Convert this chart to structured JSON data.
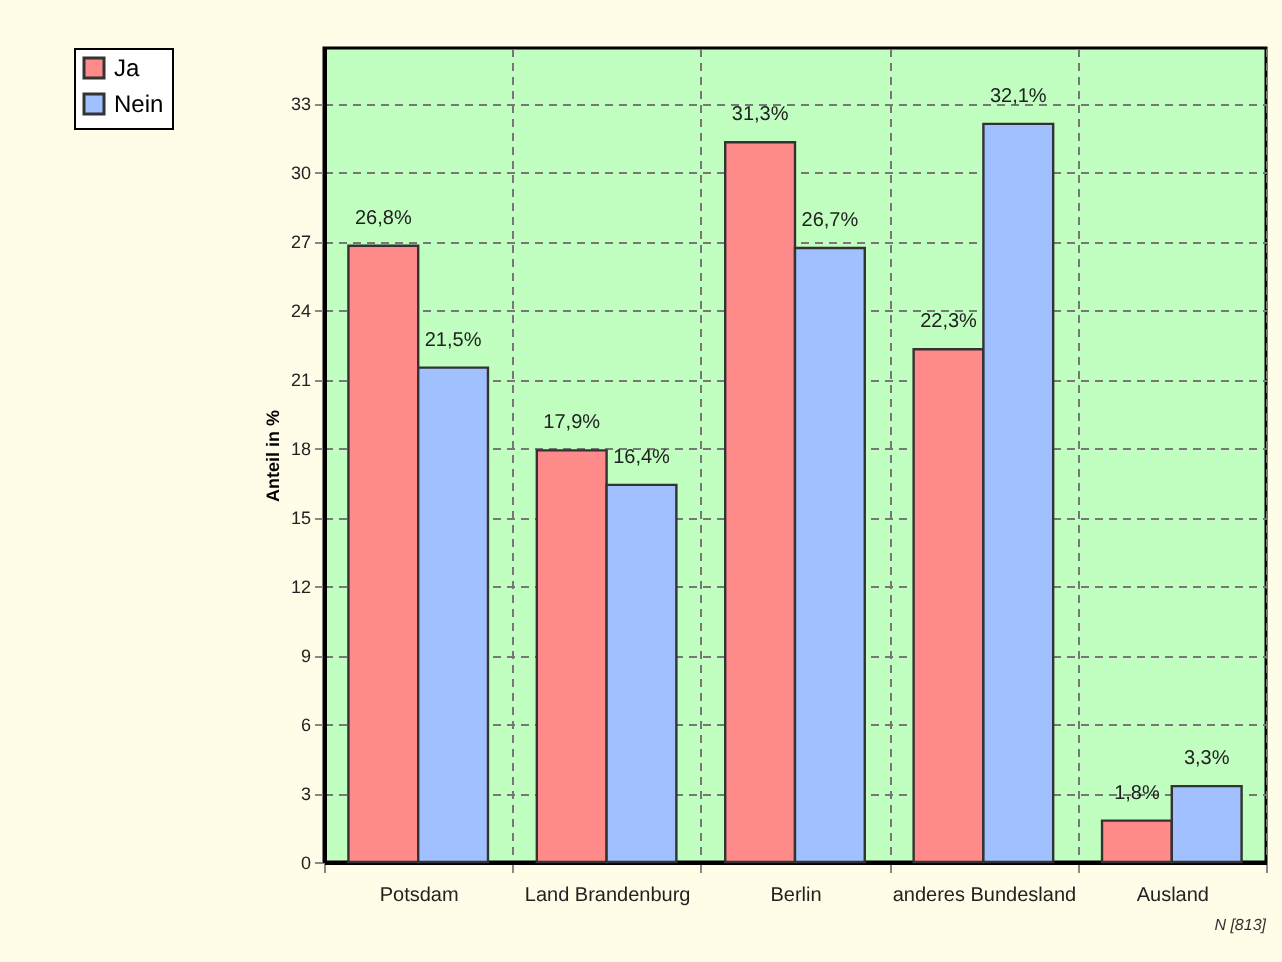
{
  "chart_data": {
    "type": "bar",
    "categories": [
      "Potsdam",
      "Land Brandenburg",
      "Berlin",
      "anderes Bundesland",
      "Ausland"
    ],
    "series": [
      {
        "name": "Ja",
        "color": "#ff8a8a",
        "values": [
          26.8,
          17.9,
          31.3,
          22.3,
          1.8
        ],
        "value_labels": [
          "26,8%",
          "17,9%",
          "31,3%",
          "22,3%",
          "1,8%"
        ]
      },
      {
        "name": "Nein",
        "color": "#a0c0ff",
        "values": [
          21.5,
          16.4,
          26.7,
          32.1,
          3.3
        ],
        "value_labels": [
          "21,5%",
          "16,4%",
          "26,7%",
          "32,1%",
          "3,3%"
        ]
      }
    ],
    "ylabel": "Anteil in %",
    "ylim": [
      0,
      35.4
    ],
    "yticks": [
      0,
      3,
      6,
      9,
      12,
      15,
      18,
      21,
      24,
      27,
      30,
      33
    ],
    "grid": true,
    "legend": "top left",
    "annotations": [
      "N [813]"
    ]
  }
}
